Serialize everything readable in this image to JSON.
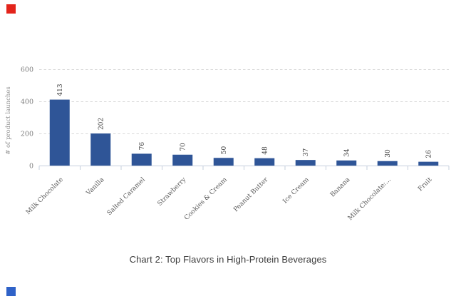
{
  "page": {
    "background": "#ffffff"
  },
  "decorations": {
    "top_left_square_color": "#E3241B",
    "bottom_left_square_color": "#2F62C8"
  },
  "caption": {
    "text": "Chart 2: Top Flavors in High-Protein Beverages"
  },
  "chart_data": {
    "type": "bar",
    "categories": [
      "Milk Chocolate",
      "Vanilla",
      "Salted Caramel",
      "Strawberry",
      "Cookies & Cream",
      "Peanut Butter",
      "Ice Cream",
      "Banana",
      "Milk Chocolate:...",
      "Fruit"
    ],
    "values": [
      413,
      202,
      76,
      70,
      50,
      48,
      37,
      34,
      30,
      26
    ],
    "title": "",
    "xlabel": "",
    "ylabel": "# of product launches",
    "ylim": [
      0,
      600
    ],
    "yticks": [
      0,
      200,
      400,
      600
    ],
    "grid": "horizontal-dashed",
    "legend": "none",
    "data_labels": "rotated-vertical-above-bars",
    "category_label_rotation_deg": -45,
    "colors": {
      "bar": "#2F5597",
      "gridline": "#D9D9D9",
      "axis_line": "#C6CFDD",
      "tick_label": "#7F7F7F",
      "value_label": "#3A3A3A",
      "category_label": "#595959",
      "axis_title": "#8F8F8F",
      "caption_text": "#3B3B3B"
    }
  }
}
